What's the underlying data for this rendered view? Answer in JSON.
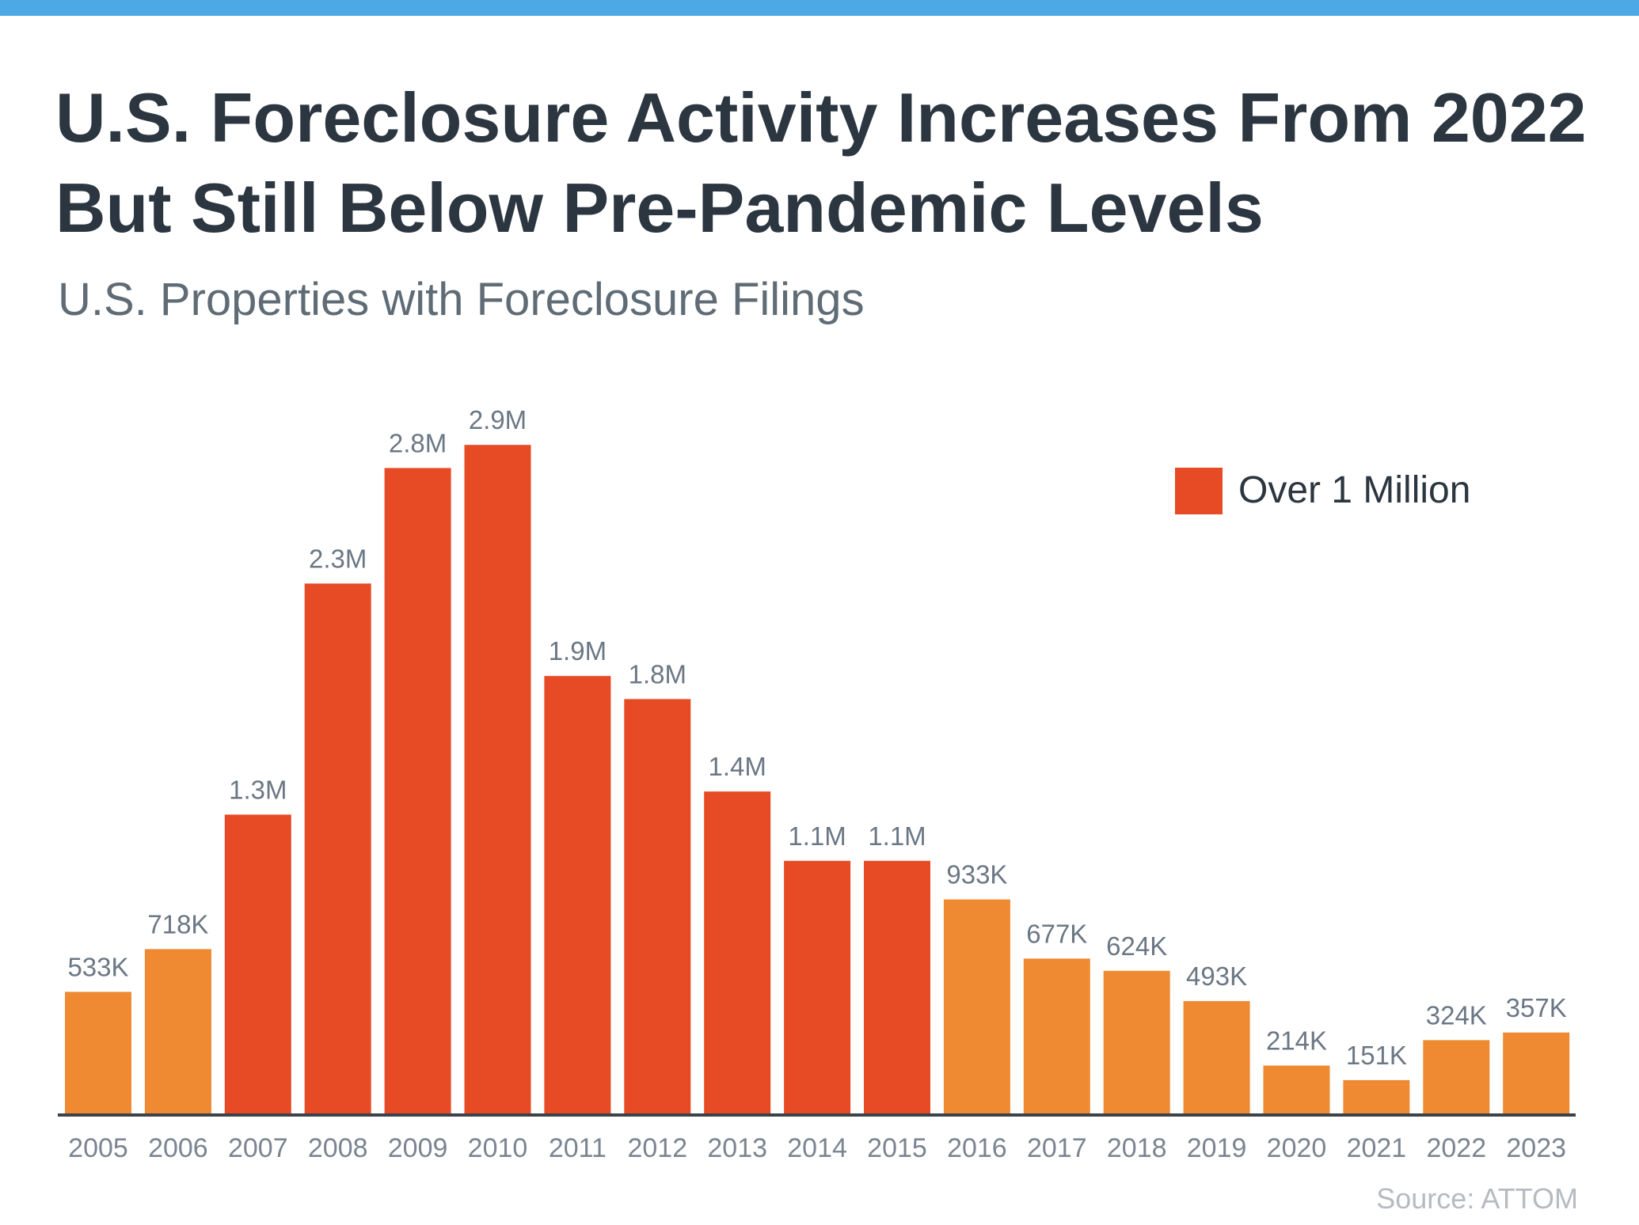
{
  "colors": {
    "top_bar": "#4DA8E6",
    "over_million": "#E64B25",
    "under_million": "#EF8A33",
    "title": "#2C3640",
    "labels": "#6B7785",
    "axis": "#3A424A"
  },
  "source": "Source: ATTOM",
  "chart_data": {
    "type": "bar",
    "title": "U.S. Foreclosure Activity Increases From 2022 But Still Below Pre-Pandemic Levels",
    "subtitle": "U.S. Properties with Foreclosure Filings",
    "xlabel": "",
    "ylabel": "",
    "unit": "millions",
    "ylim": [
      0,
      3.0
    ],
    "grid": false,
    "legend": {
      "position": "top-right",
      "entries": [
        "Over 1 Million"
      ]
    },
    "categories": [
      "2005",
      "2006",
      "2007",
      "2008",
      "2009",
      "2010",
      "2011",
      "2012",
      "2013",
      "2014",
      "2015",
      "2016",
      "2017",
      "2018",
      "2019",
      "2020",
      "2021",
      "2022",
      "2023"
    ],
    "values": [
      0.533,
      0.718,
      1.3,
      2.3,
      2.8,
      2.9,
      1.9,
      1.8,
      1.4,
      1.1,
      1.1,
      0.933,
      0.677,
      0.624,
      0.493,
      0.214,
      0.151,
      0.324,
      0.357
    ],
    "data_labels": [
      "533K",
      "718K",
      "1.3M",
      "2.3M",
      "2.8M",
      "2.9M",
      "1.9M",
      "1.8M",
      "1.4M",
      "1.1M",
      "1.1M",
      "933K",
      "677K",
      "624K",
      "493K",
      "214K",
      "151K",
      "324K",
      "357K"
    ],
    "over_million": [
      false,
      false,
      true,
      true,
      true,
      true,
      true,
      true,
      true,
      true,
      true,
      false,
      false,
      false,
      false,
      false,
      false,
      false,
      false
    ]
  }
}
